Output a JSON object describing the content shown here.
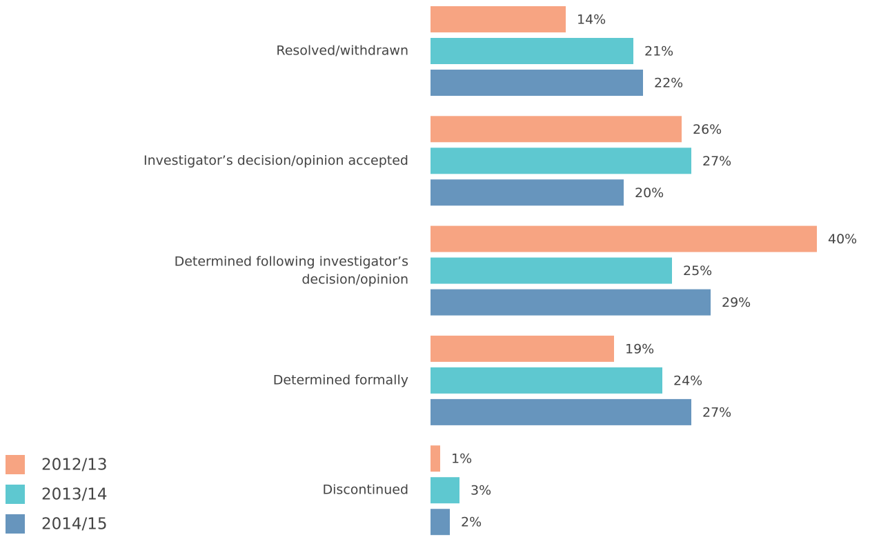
{
  "chart_data": {
    "type": "bar",
    "orientation": "horizontal",
    "categories": [
      "Resolved/withdrawn",
      "Investigator’s decision/opinion accepted",
      "Determined following investigator’s\ndecision/opinion",
      "Determined formally",
      "Discontinued"
    ],
    "series": [
      {
        "name": "2012/13",
        "color": "#f7a482",
        "values": [
          14,
          26,
          40,
          19,
          1
        ],
        "value_labels": [
          "14%",
          "26%",
          "40%",
          "19%",
          "1%"
        ]
      },
      {
        "name": "2013/14",
        "color": "#5ec8d0",
        "values": [
          21,
          27,
          25,
          24,
          3
        ],
        "value_labels": [
          "21%",
          "27%",
          "25%",
          "24%",
          "3%"
        ]
      },
      {
        "name": "2014/15",
        "color": "#6795bd",
        "values": [
          22,
          20,
          29,
          27,
          2
        ],
        "value_labels": [
          "22%",
          "20%",
          "29%",
          "27%",
          "2%"
        ]
      }
    ]
  }
}
